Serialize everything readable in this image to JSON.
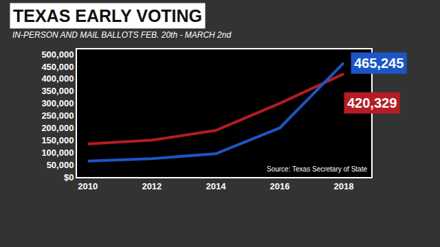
{
  "chart_data": {
    "type": "line",
    "title": "TEXAS EARLY VOTING",
    "subtitle": "IN-PERSON AND MAIL BALLOTS FEB. 20th - MARCH 2nd",
    "source": "Source: Texas Secretary of State",
    "x": [
      2010,
      2012,
      2014,
      2016,
      2018
    ],
    "series": [
      {
        "color": "#b51c24",
        "values": [
          135000,
          150000,
          190000,
          300000,
          420329
        ],
        "value_labels": [
          null,
          null,
          null,
          null,
          "420,329"
        ]
      },
      {
        "color": "#1c55c6",
        "values": [
          65000,
          75000,
          95000,
          200000,
          465245
        ],
        "value_labels": [
          null,
          null,
          null,
          null,
          "465,245"
        ]
      }
    ],
    "xlim": [
      2009.66,
      2018.86
    ],
    "xticks": [
      2010,
      2012,
      2014,
      2016,
      2018
    ],
    "ylim": [
      0,
      520000
    ],
    "yticks": [
      {
        "value": 0,
        "label": "$0"
      },
      {
        "value": 50000,
        "label": "50,000"
      },
      {
        "value": 100000,
        "label": "100,000"
      },
      {
        "value": 150000,
        "label": "150,000"
      },
      {
        "value": 200000,
        "label": "200,000"
      },
      {
        "value": 250000,
        "label": "250,000"
      },
      {
        "value": 300000,
        "label": "300,000"
      },
      {
        "value": 350000,
        "label": "350,000"
      },
      {
        "value": 400000,
        "label": "400,000"
      },
      {
        "value": 450000,
        "label": "450,000"
      },
      {
        "value": 500000,
        "label": "500,000"
      }
    ],
    "grid": false,
    "data_labels": true
  }
}
